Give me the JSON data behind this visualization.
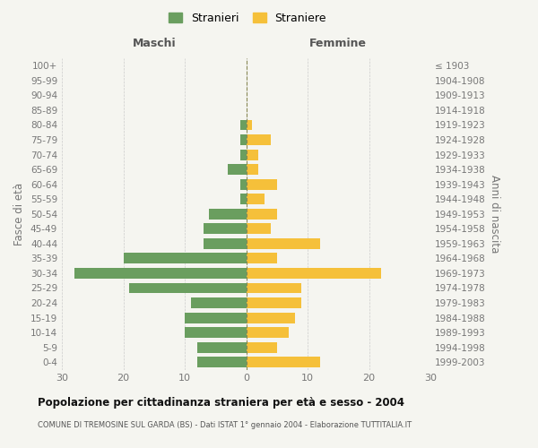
{
  "age_groups_bottom_to_top": [
    "0-4",
    "5-9",
    "10-14",
    "15-19",
    "20-24",
    "25-29",
    "30-34",
    "35-39",
    "40-44",
    "45-49",
    "50-54",
    "55-59",
    "60-64",
    "65-69",
    "70-74",
    "75-79",
    "80-84",
    "85-89",
    "90-94",
    "95-99",
    "100+"
  ],
  "birth_years_bottom_to_top": [
    "1999-2003",
    "1994-1998",
    "1989-1993",
    "1984-1988",
    "1979-1983",
    "1974-1978",
    "1969-1973",
    "1964-1968",
    "1959-1963",
    "1954-1958",
    "1949-1953",
    "1944-1948",
    "1939-1943",
    "1934-1938",
    "1929-1933",
    "1924-1928",
    "1919-1923",
    "1914-1918",
    "1909-1913",
    "1904-1908",
    "≤ 1903"
  ],
  "maschi_bottom_to_top": [
    8,
    8,
    10,
    10,
    9,
    19,
    28,
    20,
    7,
    7,
    6,
    1,
    1,
    3,
    1,
    1,
    1,
    0,
    0,
    0,
    0
  ],
  "femmine_bottom_to_top": [
    12,
    5,
    7,
    8,
    9,
    9,
    22,
    5,
    12,
    4,
    5,
    3,
    5,
    2,
    2,
    4,
    1,
    0,
    0,
    0,
    0
  ],
  "maschi_color": "#6a9e5f",
  "femmine_color": "#f5c03a",
  "title": "Popolazione per cittadinanza straniera per età e sesso - 2004",
  "subtitle": "COMUNE DI TREMOSINE SUL GARDA (BS) - Dati ISTAT 1° gennaio 2004 - Elaborazione TUTTITALIA.IT",
  "xlabel_left": "Maschi",
  "xlabel_right": "Femmine",
  "ylabel_left": "Fasce di età",
  "ylabel_right": "Anni di nascita",
  "legend_maschi": "Stranieri",
  "legend_femmine": "Straniere",
  "xlim": 30,
  "background_color": "#f5f5f0",
  "grid_color": "#cccccc",
  "center_line_color": "#888855",
  "tick_color": "#777777",
  "title_color": "#111111",
  "subtitle_color": "#555555",
  "header_color": "#555555"
}
